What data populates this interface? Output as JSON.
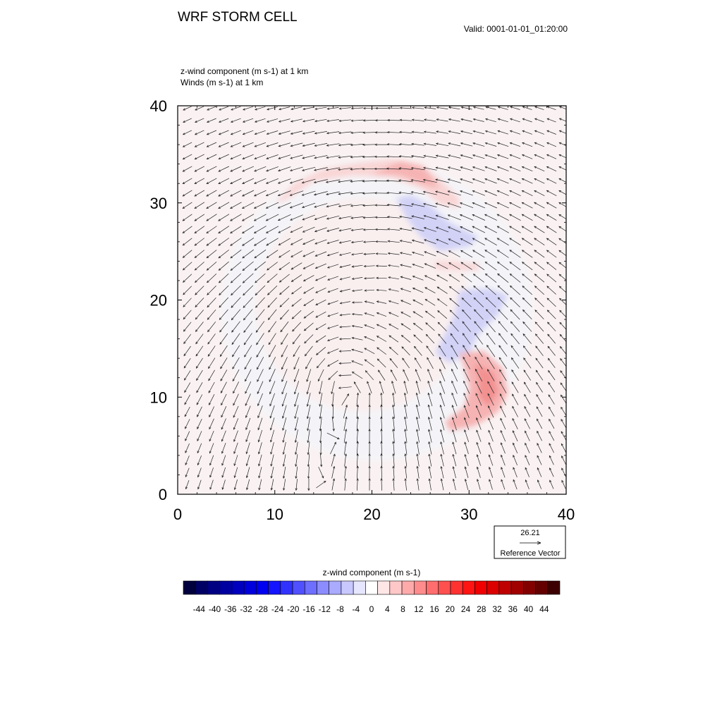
{
  "header": {
    "title": "WRF STORM CELL",
    "valid": "Valid: 0001-01-01_01:20:00",
    "field_line": "z-wind component   (m s-1)     at   1 km",
    "vector_line": "Winds   (m s-1)     at   1 km"
  },
  "reference_vector": {
    "value": "26.21",
    "label": "Reference Vector"
  },
  "colorbar": {
    "title": "z-wind component  (m s-1)",
    "labels": [
      "-44",
      "-40",
      "-36",
      "-32",
      "-28",
      "-24",
      "-20",
      "-16",
      "-12",
      "-8",
      "-4",
      "0",
      "4",
      "8",
      "12",
      "16",
      "20",
      "24",
      "28",
      "32",
      "36",
      "40",
      "44"
    ],
    "colors": [
      "#00003c",
      "#000064",
      "#000082",
      "#0000a0",
      "#0000be",
      "#0000dc",
      "#0000f0",
      "#1414ff",
      "#3232ff",
      "#5050ff",
      "#6e6eff",
      "#8c8cff",
      "#aaaaff",
      "#c8c8ff",
      "#e6e6ff",
      "#ffffff",
      "#ffe6e6",
      "#ffc8c8",
      "#ffaaaa",
      "#ff8c8c",
      "#ff6e6e",
      "#ff5050",
      "#ff3232",
      "#ff1414",
      "#f00000",
      "#dc0000",
      "#be0000",
      "#a00000",
      "#820000",
      "#640000",
      "#3c0000"
    ]
  },
  "colors": {
    "updraft_weak": "#fbeeee",
    "updraft_light": "#f9d6d6",
    "updraft_mid": "#f6b3b3",
    "updraft_strong": "#f39090",
    "downdraft_light": "#e6e6fb",
    "downdraft_mid": "#d2d2f7",
    "background": "#faf2f2"
  },
  "chart_data": {
    "type": "heatmap",
    "title": "WRF STORM CELL",
    "xlim": [
      0,
      40
    ],
    "ylim": [
      0,
      40
    ],
    "x_ticks": [
      "0",
      "10",
      "20",
      "30",
      "40"
    ],
    "y_ticks": [
      "0",
      "10",
      "20",
      "30",
      "40"
    ],
    "field": "z-wind component (m s-1) at 1 km",
    "vectors": "Winds (m s-1) at 1 km",
    "reference_vector_ms": 26.21,
    "storm_center": [
      20,
      20
    ],
    "features": [
      {
        "kind": "updraft arc",
        "x_range": [
          10,
          29
        ],
        "y_range": [
          29,
          35
        ],
        "approx_max": 10
      },
      {
        "kind": "downdraft",
        "x_range": [
          22,
          31
        ],
        "y_range": [
          25,
          31
        ],
        "approx_min": -4
      },
      {
        "kind": "downdraft",
        "x_range": [
          26,
          34
        ],
        "y_range": [
          13,
          21
        ],
        "approx_min": -4
      },
      {
        "kind": "updraft",
        "x_range": [
          28,
          34
        ],
        "y_range": [
          7,
          15
        ],
        "approx_max": 14
      }
    ]
  }
}
